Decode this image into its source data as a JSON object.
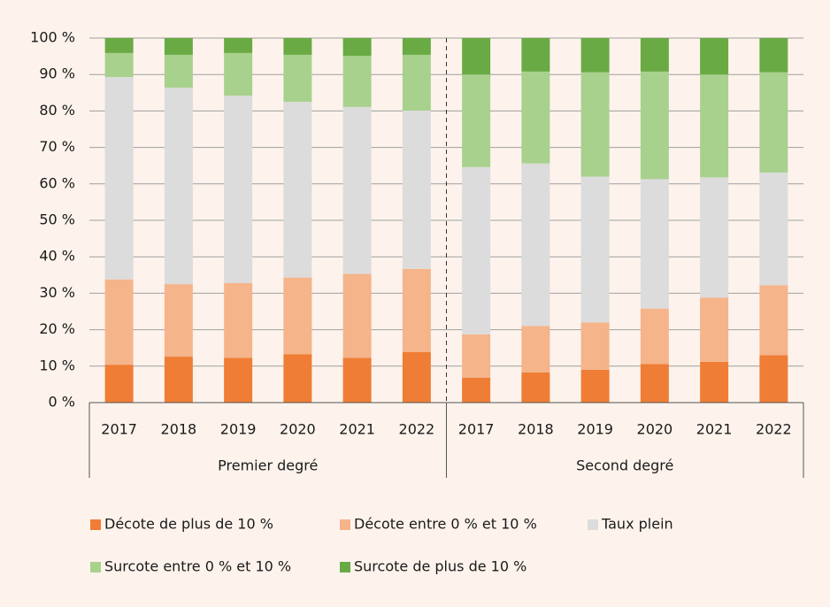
{
  "chart_data": {
    "type": "stacked_bar",
    "categories": [
      "2017",
      "2018",
      "2019",
      "2020",
      "2021",
      "2022",
      "2017",
      "2018",
      "2019",
      "2020",
      "2021",
      "2022"
    ],
    "groups": [
      "Premier degré",
      "Second degré"
    ],
    "ylim": [
      0,
      100
    ],
    "yticks": [
      {
        "value": 0,
        "label": "0 %"
      },
      {
        "value": 10,
        "label": "10 %"
      },
      {
        "value": 20,
        "label": "20 %"
      },
      {
        "value": 30,
        "label": "30 %"
      },
      {
        "value": 40,
        "label": "40 %"
      },
      {
        "value": 50,
        "label": "50 %"
      },
      {
        "value": 60,
        "label": "60 %"
      },
      {
        "value": 70,
        "label": "70 %"
      },
      {
        "value": 80,
        "label": "80 %"
      },
      {
        "value": 90,
        "label": "90 %"
      },
      {
        "value": 100,
        "label": "100 %"
      }
    ],
    "grid": true,
    "series": [
      {
        "name": "Décote de plus de 10 %",
        "color": "#ef7d35",
        "values": [
          10.4,
          12.6,
          12.3,
          13.3,
          12.3,
          13.9,
          6.8,
          8.3,
          9.0,
          10.6,
          11.2,
          13.0
        ]
      },
      {
        "name": "Décote entre 0 % et 10 %",
        "color": "#f5b48a",
        "values": [
          23.4,
          19.9,
          20.5,
          21.0,
          23.0,
          22.8,
          11.9,
          12.7,
          13.0,
          15.2,
          17.6,
          19.2
        ]
      },
      {
        "name": "Taux plein",
        "color": "#dcdcdc",
        "values": [
          55.5,
          53.9,
          51.4,
          48.2,
          45.8,
          43.4,
          45.9,
          44.6,
          40.0,
          35.5,
          33.0,
          30.9
        ]
      },
      {
        "name": "Surcote entre 0 % et 10 %",
        "color": "#a8d18d",
        "values": [
          6.6,
          9.0,
          11.7,
          12.9,
          14.0,
          15.3,
          25.4,
          25.2,
          28.6,
          29.5,
          28.2,
          27.5
        ]
      },
      {
        "name": "Surcote de plus de 10 %",
        "color": "#6aaa44",
        "values": [
          4.1,
          4.6,
          4.1,
          4.6,
          4.9,
          4.6,
          10.0,
          9.2,
          9.4,
          9.2,
          10.0,
          9.4
        ]
      }
    ]
  }
}
